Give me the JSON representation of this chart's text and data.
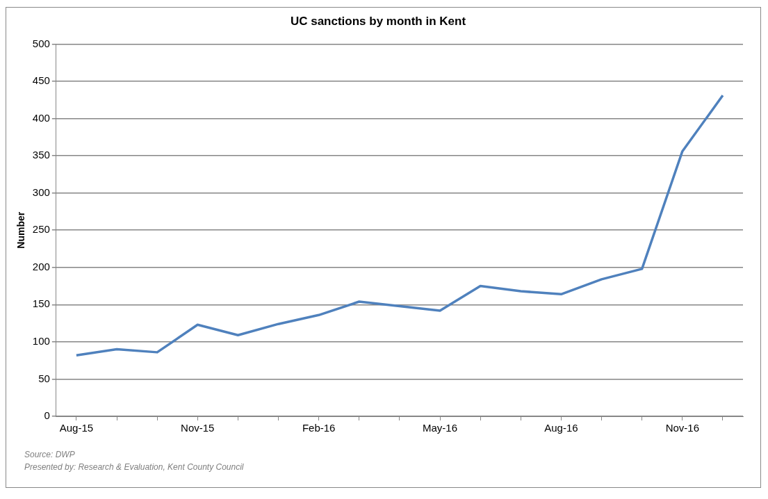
{
  "chart_data": {
    "type": "line",
    "title": "UC sanctions by month in Kent",
    "ylabel": "Number",
    "categories": [
      "Aug-15",
      null,
      null,
      "Nov-15",
      null,
      null,
      "Feb-16",
      null,
      null,
      "May-16",
      null,
      null,
      "Aug-16",
      null,
      null,
      "Nov-16",
      null
    ],
    "series": [
      {
        "color": "#4f81bd",
        "values": [
          82,
          90,
          86,
          123,
          109,
          124,
          136,
          154,
          148,
          142,
          175,
          168,
          164,
          184,
          198,
          356,
          431
        ]
      }
    ],
    "ylim": [
      0,
      500
    ],
    "yticks": [
      0,
      50,
      100,
      150,
      200,
      250,
      300,
      350,
      400,
      450,
      500
    ],
    "grid": "y",
    "legend": false,
    "marker": "none",
    "line_style": "solid",
    "annotations": [
      "Source: DWP",
      "Presented by: Research & Evaluation, Kent County Council"
    ]
  }
}
